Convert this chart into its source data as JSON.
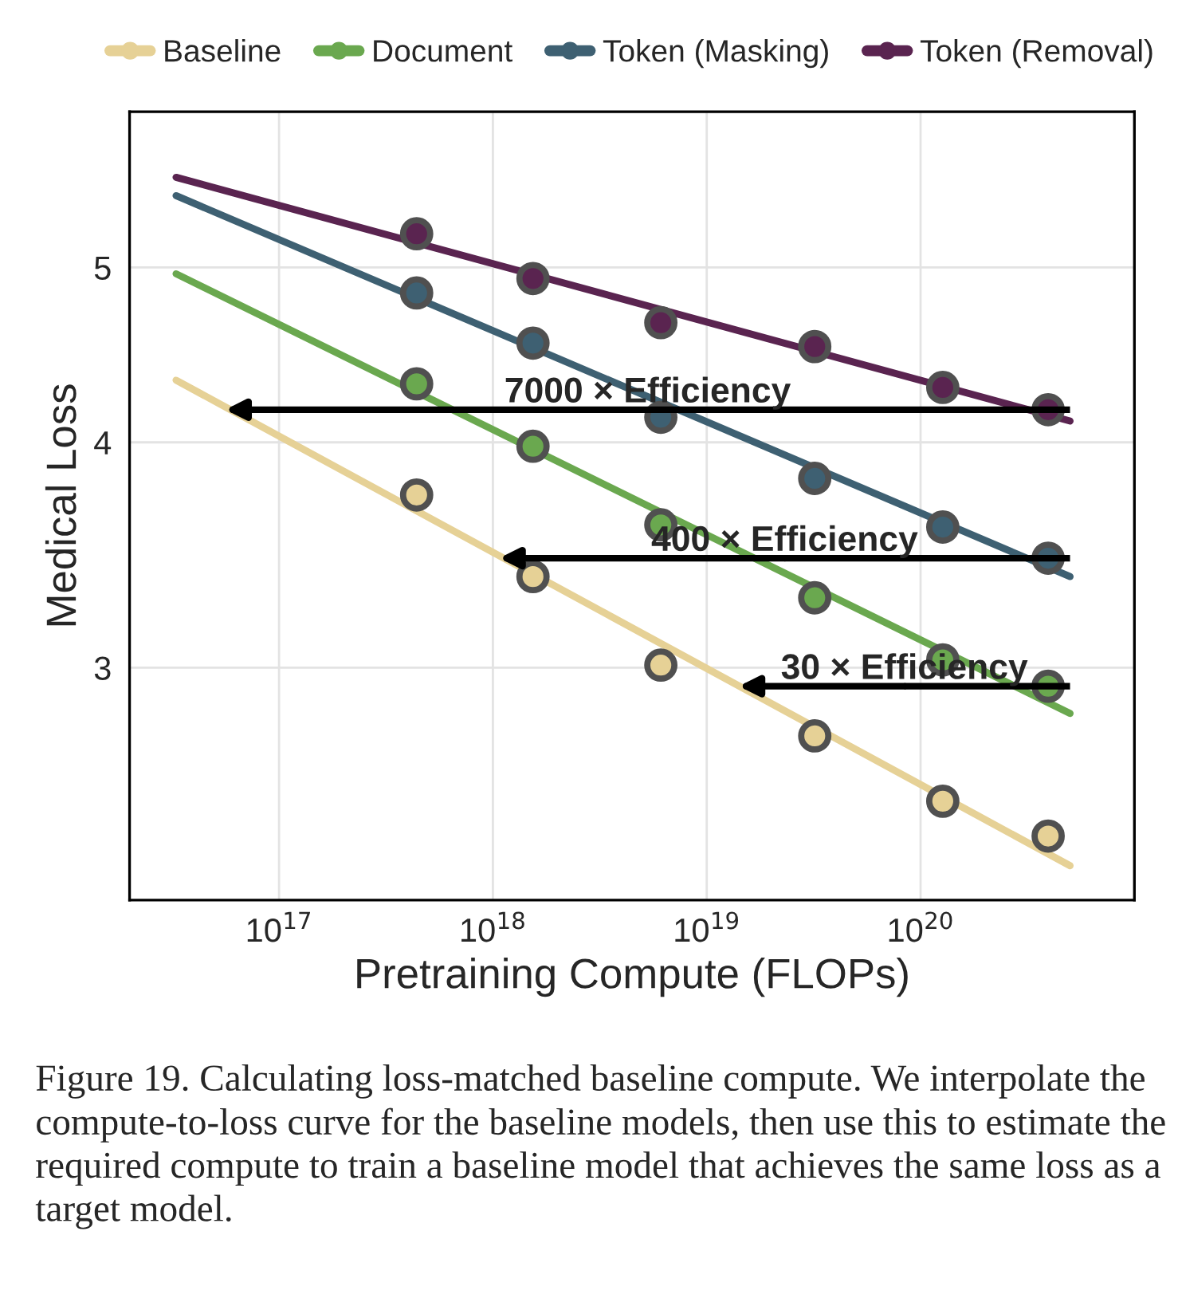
{
  "chart_data": {
    "type": "scatter",
    "xlabel": "Pretraining Compute (FLOPs)",
    "ylabel": "Medical Loss",
    "log": "xy",
    "grid": true,
    "legend": "top",
    "marker": "circle",
    "xlim": [
      2e+16,
      1e+21
    ],
    "ylim": [
      2.23,
      6.1
    ],
    "xticks": [
      {
        "value": 1e+17,
        "label": "10$^{17}$"
      },
      {
        "value": 1e+18,
        "label": "10$^{18}$"
      },
      {
        "value": 1e+19,
        "label": "10$^{19}$"
      },
      {
        "value": 1e+20,
        "label": "10$^{20}$"
      }
    ],
    "yticks": [
      3,
      4,
      5
    ],
    "series": [
      {
        "type": "line",
        "marker": "none",
        "color": "#e6d196",
        "x": [
          3.3e+16,
          5e+20
        ],
        "values": [
          4.33,
          2.33
        ]
      },
      {
        "type": "line",
        "marker": "none",
        "color": "#6aa84f",
        "x": [
          3.3e+16,
          5e+20
        ],
        "values": [
          4.96,
          2.83
        ]
      },
      {
        "type": "line",
        "marker": "none",
        "color": "#3e6072",
        "x": [
          3.3e+16,
          5e+20
        ],
        "values": [
          5.48,
          3.37
        ]
      },
      {
        "type": "line",
        "marker": "none",
        "color": "#5a2450",
        "x": [
          3.3e+16,
          5e+20
        ],
        "values": [
          5.61,
          4.11
        ]
      },
      {
        "name": "Baseline",
        "color": "#e6d196",
        "x": [
          4.4e+17,
          1.54e+18,
          6.1e+18,
          3.2e+19,
          1.27e+20,
          3.95e+20
        ],
        "values": [
          3.74,
          3.37,
          3.01,
          2.75,
          2.53,
          2.42
        ]
      },
      {
        "name": "Document",
        "color": "#6aa84f",
        "x": [
          4.4e+17,
          1.54e+18,
          6.1e+18,
          3.2e+19,
          1.27e+20,
          3.95e+20
        ],
        "values": [
          4.31,
          3.98,
          3.6,
          3.28,
          3.03,
          2.93
        ]
      },
      {
        "name": "Token (Masking)",
        "color": "#3e6072",
        "x": [
          4.4e+17,
          1.54e+18,
          6.1e+18,
          3.2e+19,
          1.27e+20,
          3.95e+20
        ],
        "values": [
          4.84,
          4.54,
          4.13,
          3.82,
          3.59,
          3.45
        ]
      },
      {
        "name": "Token (Removal)",
        "color": "#5a2450",
        "x": [
          4.4e+17,
          1.54e+18,
          6.1e+18,
          3.2e+19,
          1.27e+20,
          3.95e+20
        ],
        "values": [
          5.22,
          4.93,
          4.66,
          4.52,
          4.29,
          4.17
        ]
      }
    ],
    "annotations": [
      {
        "text": "7000 × Efficiency",
        "x": 5.6e+16,
        "y": 4.17
      },
      {
        "text": "400 × Efficiency",
        "x": 1.07e+18,
        "y": 3.45
      },
      {
        "text": "30 × Efficiency",
        "x": 1.41e+19,
        "y": 2.93
      },
      "Figure 19. Calculating loss-matched baseline compute. We interpolate the compute-to-loss curve for the baseline models, then use this to estimate the required compute to train a baseline model that achieves the same loss as a target model."
    ]
  }
}
